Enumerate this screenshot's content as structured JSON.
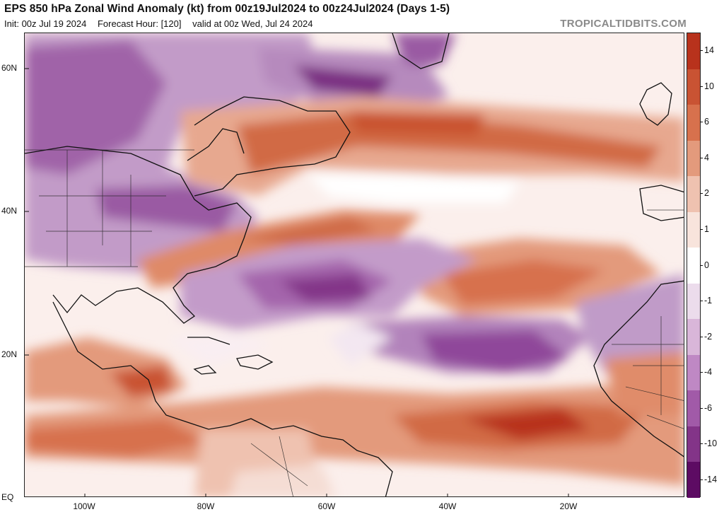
{
  "header": {
    "title": "EPS 850 hPa Zonal Wind Anomaly (kt) from 00z19Jul2024 to 00z24Jul2024 (Days 1-5)",
    "init": "Init: 00z Jul 19 2024",
    "forecast_hour": "Forecast Hour: [120]",
    "valid": "valid at 00z Wed, Jul 24 2024",
    "brand": "TROPICALTIDBITS.COM"
  },
  "map": {
    "latitude_labels": [
      "60N",
      "40N",
      "20N",
      "EQ"
    ],
    "longitude_labels": [
      "100W",
      "80W",
      "60W",
      "40W",
      "20W"
    ],
    "features": [
      "North America coastline",
      "Greenland",
      "Caribbean islands",
      "South America",
      "Iberia",
      "British Isles",
      "West Africa"
    ]
  },
  "colorbar": {
    "unit": "kt",
    "labels": [
      "14",
      "10",
      "6",
      "4",
      "2",
      "1",
      "0",
      "-1",
      "-2",
      "-4",
      "-6",
      "-10",
      "-14"
    ],
    "colors": [
      "#b8321c",
      "#c95333",
      "#d7714d",
      "#e39a7c",
      "#efc2b0",
      "#f8e4dc",
      "#ffffff",
      "#ecdcec",
      "#d9b6d9",
      "#bf88c4",
      "#a15aa8",
      "#833488",
      "#5d0b63"
    ]
  }
}
